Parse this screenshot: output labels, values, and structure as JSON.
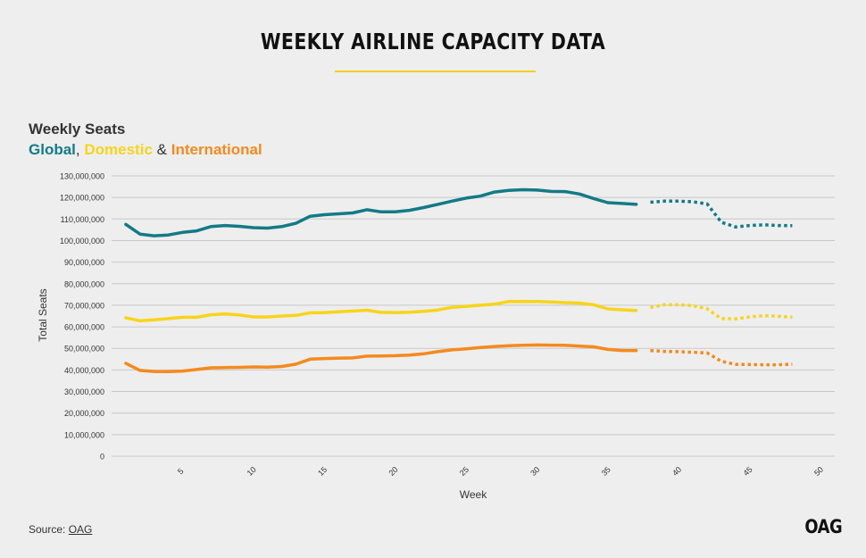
{
  "page": {
    "title": "WEEKLY AIRLINE CAPACITY DATA",
    "chart_heading": "Weekly Seats",
    "subheading_global": "Global",
    "subheading_comma": ",",
    "subheading_domestic": "Domestic",
    "subheading_amp": "&",
    "subheading_international": "International",
    "source_prefix": "Source:",
    "source_link": "OAG",
    "logo_text": "OAG"
  },
  "colors": {
    "global": "#137a86",
    "domestic": "#f7d41a",
    "international": "#f48a1e",
    "title_rule": "#f2d013",
    "grid": "#c8c8c8"
  },
  "chart_data": {
    "type": "line",
    "xlabel": "Week",
    "ylabel": "Total Seats",
    "xlim": [
      0,
      51
    ],
    "ylim": [
      0,
      130000000
    ],
    "x_ticks": [
      5,
      10,
      15,
      20,
      25,
      30,
      35,
      40,
      45,
      50
    ],
    "y_ticks": [
      0,
      10000000,
      20000000,
      30000000,
      40000000,
      50000000,
      60000000,
      70000000,
      80000000,
      90000000,
      100000000,
      110000000,
      120000000,
      130000000
    ],
    "y_tick_labels": [
      "0",
      "10,000,000",
      "20,000,000",
      "30,000,000",
      "40,000,000",
      "50,000,000",
      "60,000,000",
      "70,000,000",
      "80,000,000",
      "90,000,000",
      "100,000,000",
      "110,000,000",
      "120,000,000",
      "130,000,000"
    ],
    "grid": true,
    "actual_weeks": [
      1,
      2,
      3,
      4,
      5,
      6,
      7,
      8,
      9,
      10,
      11,
      12,
      13,
      14,
      15,
      16,
      17,
      18,
      19,
      20,
      21,
      22,
      23,
      24,
      25,
      26,
      27,
      28,
      29,
      30,
      31,
      32,
      33,
      34,
      35,
      36,
      37
    ],
    "forecast_weeks": [
      38,
      39,
      40,
      41,
      42,
      43,
      44,
      45,
      46,
      47,
      48
    ],
    "series": [
      {
        "name": "Global",
        "color_key": "global",
        "actual": [
          107500000,
          103000000,
          102200000,
          102600000,
          103800000,
          104500000,
          106500000,
          107000000,
          106600000,
          106000000,
          105800000,
          106500000,
          108000000,
          111300000,
          112000000,
          112400000,
          112800000,
          114300000,
          113300000,
          113300000,
          114000000,
          115300000,
          116800000,
          118300000,
          119700000,
          120600000,
          122500000,
          123300000,
          123600000,
          123400000,
          122800000,
          122700000,
          121600000,
          119500000,
          117600000,
          117200000,
          116800000
        ],
        "forecast": [
          117800000,
          118300000,
          118300000,
          118000000,
          117000000,
          108500000,
          106300000,
          107000000,
          107300000,
          107000000,
          106900000
        ]
      },
      {
        "name": "Domestic",
        "color_key": "domestic",
        "actual": [
          64200000,
          62800000,
          63200000,
          63800000,
          64400000,
          64400000,
          65600000,
          66000000,
          65500000,
          64600000,
          64600000,
          65000000,
          65300000,
          66500000,
          66600000,
          67000000,
          67300000,
          67700000,
          66700000,
          66600000,
          66800000,
          67200000,
          67800000,
          69000000,
          69500000,
          70000000,
          70500000,
          71700000,
          71800000,
          71700000,
          71500000,
          71200000,
          71000000,
          70200000,
          68300000,
          67900000,
          67600000
        ],
        "forecast": [
          69000000,
          70200000,
          70200000,
          69800000,
          68300000,
          63800000,
          63700000,
          64600000,
          65200000,
          64900000,
          64500000
        ]
      },
      {
        "name": "International",
        "color_key": "international",
        "actual": [
          43100000,
          39800000,
          39300000,
          39200000,
          39500000,
          40200000,
          41000000,
          41100000,
          41200000,
          41400000,
          41300000,
          41600000,
          42700000,
          45000000,
          45300000,
          45500000,
          45600000,
          46400000,
          46500000,
          46600000,
          46900000,
          47500000,
          48500000,
          49300000,
          49800000,
          50400000,
          50900000,
          51200000,
          51400000,
          51600000,
          51500000,
          51400000,
          51100000,
          50700000,
          49500000,
          49000000,
          49000000
        ],
        "forecast": [
          49000000,
          48600000,
          48500000,
          48200000,
          47900000,
          44000000,
          42600000,
          42500000,
          42400000,
          42400000,
          42700000
        ]
      }
    ]
  }
}
